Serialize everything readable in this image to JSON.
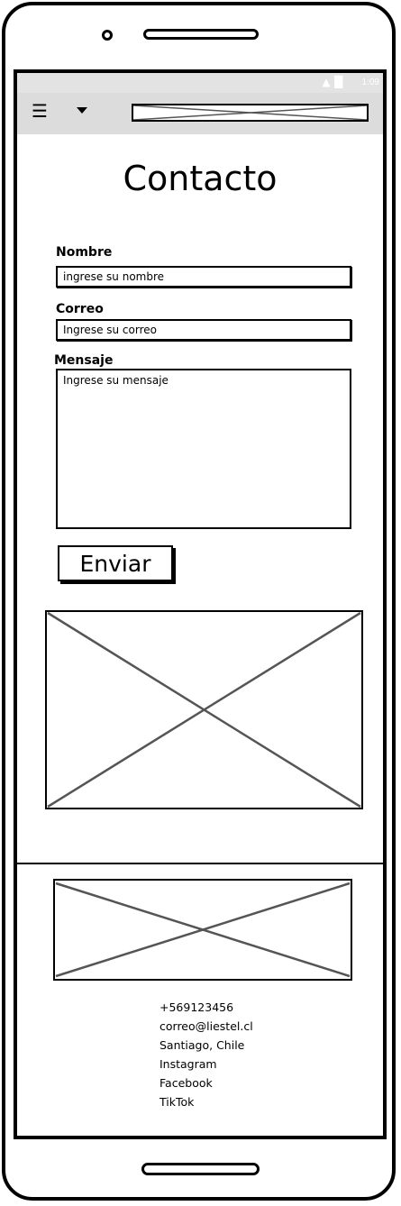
{
  "status_bar": {
    "time": "1:09",
    "icons": [
      "wifi-icon",
      "signal-icon",
      "battery-icon"
    ]
  },
  "app_bar": {
    "menu_icon": "hamburger-icon",
    "dropdown_icon": "caret-down-icon",
    "logo": "image-placeholder"
  },
  "page": {
    "title": "Contacto"
  },
  "form": {
    "name_label": "Nombre",
    "name_placeholder": "ingrese su nombre",
    "email_label": "Correo",
    "email_placeholder": "Ingrese su correo",
    "message_label": "Mensaje",
    "message_placeholder": "Ingrese su mensaje",
    "submit_label": "Enviar"
  },
  "footer": {
    "items": [
      "+569123456",
      "correo@liestel.cl",
      "Santiago, Chile",
      "Instagram",
      "Facebook",
      "TikTok"
    ]
  }
}
